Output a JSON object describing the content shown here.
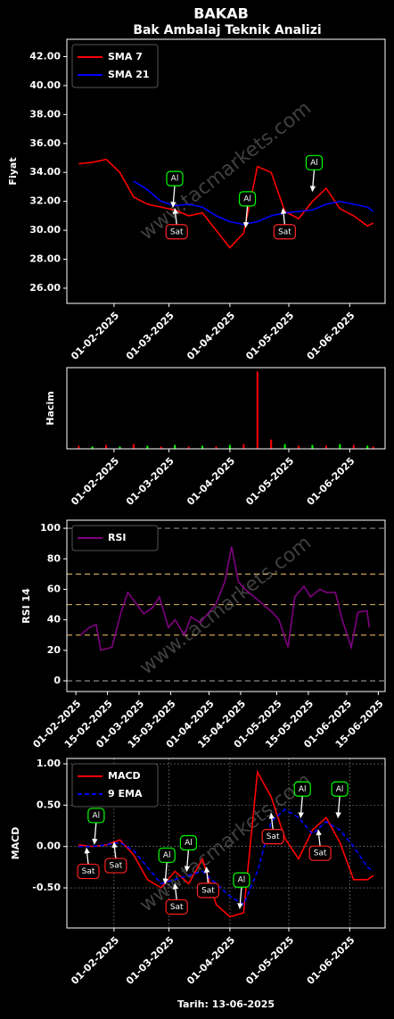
{
  "chart_data": [
    {
      "type": "line",
      "title": "BAKAB",
      "subtitle": "Bak Ambalaj Teknik Analizi",
      "ylabel": "Fiyat",
      "watermark": "www.tacmarkets.com",
      "x": [
        "2025-01-14",
        "2025-01-21",
        "2025-01-28",
        "2025-02-04",
        "2025-02-11",
        "2025-02-18",
        "2025-02-25",
        "2025-03-04",
        "2025-03-11",
        "2025-03-18",
        "2025-03-25",
        "2025-04-01",
        "2025-04-08",
        "2025-04-15",
        "2025-04-22",
        "2025-04-29",
        "2025-05-06",
        "2025-05-13",
        "2025-05-20",
        "2025-05-27",
        "2025-06-03",
        "2025-06-10",
        "2025-06-13"
      ],
      "series": [
        {
          "name": "SMA 7",
          "color": "#ff0000",
          "values": [
            34.6,
            34.7,
            34.9,
            34.0,
            32.3,
            31.8,
            31.6,
            31.4,
            31.0,
            31.2,
            30.0,
            28.8,
            29.8,
            34.4,
            34.0,
            31.3,
            30.8,
            32.0,
            32.9,
            31.5,
            31.0,
            30.3,
            30.5
          ]
        },
        {
          "name": "SMA 21",
          "color": "#0000ff",
          "values": [
            null,
            null,
            null,
            null,
            33.4,
            32.8,
            32.0,
            31.7,
            31.8,
            31.6,
            31.0,
            30.6,
            30.4,
            30.6,
            31.0,
            31.2,
            31.3,
            31.4,
            31.8,
            32.0,
            31.8,
            31.6,
            31.3
          ]
        }
      ],
      "annotations": [
        {
          "text": "Al",
          "x": "2025-03-03",
          "y": 31.6
        },
        {
          "text": "Sat",
          "x": "2025-03-04",
          "y": 31.5
        },
        {
          "text": "Al",
          "x": "2025-04-09",
          "y": 30.2
        },
        {
          "text": "Sat",
          "x": "2025-04-28",
          "y": 31.5
        },
        {
          "text": "Al",
          "x": "2025-05-13",
          "y": 32.7
        }
      ],
      "xlim": [
        "2025-01-08",
        "2025-06-19"
      ],
      "xticks": [
        {
          "value": "2025-02-01",
          "label": "01-02-2025"
        },
        {
          "value": "2025-03-01",
          "label": "01-03-2025"
        },
        {
          "value": "2025-04-01",
          "label": "01-04-2025"
        },
        {
          "value": "2025-05-01",
          "label": "01-05-2025"
        },
        {
          "value": "2025-06-01",
          "label": "01-06-2025"
        }
      ],
      "ylim": [
        24.95,
        43.2
      ],
      "yticks": [
        {
          "value": 26,
          "label": "26.00"
        },
        {
          "value": 28,
          "label": "28.00"
        },
        {
          "value": 30,
          "label": "30.00"
        },
        {
          "value": 32,
          "label": "32.00"
        },
        {
          "value": 34,
          "label": "34.00"
        },
        {
          "value": 36,
          "label": "36.00"
        },
        {
          "value": 38,
          "label": "38.00"
        },
        {
          "value": 40,
          "label": "40.00"
        },
        {
          "value": 42,
          "label": "42.00"
        }
      ],
      "legend": "upper left",
      "grid": false
    },
    {
      "type": "bar",
      "ylabel": "Hacim",
      "x": [
        "2025-01-14",
        "2025-01-21",
        "2025-01-28",
        "2025-02-04",
        "2025-02-11",
        "2025-02-18",
        "2025-02-25",
        "2025-03-04",
        "2025-03-11",
        "2025-03-18",
        "2025-03-25",
        "2025-04-01",
        "2025-04-08",
        "2025-04-15",
        "2025-04-22",
        "2025-04-29",
        "2025-05-06",
        "2025-05-13",
        "2025-05-20",
        "2025-05-27",
        "2025-06-03",
        "2025-06-10",
        "2025-06-13"
      ],
      "values": [
        4,
        3,
        5,
        3,
        6,
        4,
        3,
        5,
        3,
        4,
        3,
        5,
        6,
        100,
        12,
        6,
        4,
        5,
        4,
        6,
        5,
        4,
        3
      ],
      "colors": [
        "#ff0000",
        "#00ff00",
        "#ff0000",
        "#00ff00",
        "#ff0000",
        "#00ff00",
        "#ff0000",
        "#00ff00",
        "#ff0000",
        "#00ff00",
        "#ff0000",
        "#00ff00",
        "#ff0000",
        "#ff0000",
        "#ff0000",
        "#00ff00",
        "#ff0000",
        "#00ff00",
        "#ff0000",
        "#00ff00",
        "#ff0000",
        "#00ff00",
        "#ff0000"
      ],
      "xlim": [
        "2025-01-08",
        "2025-06-19"
      ],
      "xticks": [
        {
          "value": "2025-02-01",
          "label": "01-02-2025"
        },
        {
          "value": "2025-03-01",
          "label": "01-03-2025"
        },
        {
          "value": "2025-04-01",
          "label": "01-04-2025"
        },
        {
          "value": "2025-05-01",
          "label": "01-05-2025"
        },
        {
          "value": "2025-06-01",
          "label": "01-06-2025"
        }
      ],
      "ylim": [
        0,
        105
      ],
      "yticks": [],
      "grid": false
    },
    {
      "type": "line",
      "ylabel": "RSI 14",
      "watermark": "www.tacmarkets.com",
      "x": [
        "2025-02-03",
        "2025-02-07",
        "2025-02-10",
        "2025-02-12",
        "2025-02-17",
        "2025-02-21",
        "2025-02-24",
        "2025-02-28",
        "2025-03-03",
        "2025-03-07",
        "2025-03-10",
        "2025-03-14",
        "2025-03-17",
        "2025-03-21",
        "2025-03-24",
        "2025-03-28",
        "2025-04-01",
        "2025-04-04",
        "2025-04-08",
        "2025-04-11",
        "2025-04-14",
        "2025-04-17",
        "2025-04-21",
        "2025-04-25",
        "2025-04-29",
        "2025-05-02",
        "2025-05-06",
        "2025-05-09",
        "2025-05-13",
        "2025-05-16",
        "2025-05-20",
        "2025-05-23",
        "2025-05-27",
        "2025-05-30",
        "2025-06-03",
        "2025-06-06",
        "2025-06-10",
        "2025-06-11"
      ],
      "series": [
        {
          "name": "RSI",
          "color": "#800080",
          "values": [
            30,
            35,
            37,
            20,
            22,
            45,
            58,
            50,
            44,
            48,
            55,
            35,
            40,
            30,
            42,
            38,
            45,
            50,
            65,
            88,
            65,
            60,
            55,
            50,
            45,
            40,
            22,
            55,
            62,
            55,
            60,
            58,
            58,
            40,
            22,
            45,
            46,
            35
          ]
        }
      ],
      "hlines": [
        {
          "value": 0,
          "color": "#888888"
        },
        {
          "value": 30,
          "color": "#c8a050"
        },
        {
          "value": 50,
          "color": "#c8a050"
        },
        {
          "value": 70,
          "color": "#c8a050"
        },
        {
          "value": 100,
          "color": "#888888"
        }
      ],
      "xlim": [
        "2025-01-28",
        "2025-06-18"
      ],
      "xticks": [
        {
          "value": "2025-02-01",
          "label": "01-02-2025"
        },
        {
          "value": "2025-02-15",
          "label": "15-02-2025"
        },
        {
          "value": "2025-03-01",
          "label": "01-03-2025"
        },
        {
          "value": "2025-03-15",
          "label": "15-03-2025"
        },
        {
          "value": "2025-04-01",
          "label": "01-04-2025"
        },
        {
          "value": "2025-04-15",
          "label": "15-04-2025"
        },
        {
          "value": "2025-05-01",
          "label": "01-05-2025"
        },
        {
          "value": "2025-05-15",
          "label": "15-05-2025"
        },
        {
          "value": "2025-06-01",
          "label": "01-06-2025"
        },
        {
          "value": "2025-06-15",
          "label": "15-06-2025"
        }
      ],
      "ylim": [
        -7,
        105.3
      ],
      "yticks": [
        0,
        20,
        40,
        60,
        80,
        100
      ],
      "legend": "upper left",
      "grid": false
    },
    {
      "type": "line",
      "ylabel": "MACD",
      "xlabel": "Tarih: 13-06-2025",
      "watermark": "www.tacmarkets.com",
      "x": [
        "2025-01-14",
        "2025-01-21",
        "2025-01-28",
        "2025-02-04",
        "2025-02-11",
        "2025-02-18",
        "2025-02-25",
        "2025-03-04",
        "2025-03-11",
        "2025-03-18",
        "2025-03-25",
        "2025-04-01",
        "2025-04-08",
        "2025-04-15",
        "2025-04-22",
        "2025-04-29",
        "2025-05-06",
        "2025-05-13",
        "2025-05-20",
        "2025-05-27",
        "2025-06-03",
        "2025-06-10",
        "2025-06-13"
      ],
      "series": [
        {
          "name": "MACD",
          "color": "#ff0000",
          "values": [
            0.02,
            0.0,
            0.02,
            0.08,
            -0.1,
            -0.4,
            -0.5,
            -0.3,
            -0.45,
            -0.15,
            -0.7,
            -0.85,
            -0.8,
            0.9,
            0.6,
            0.1,
            -0.15,
            0.2,
            0.35,
            0.05,
            -0.4,
            -0.4,
            -0.35
          ]
        },
        {
          "name": "9 EMA",
          "color": "#0000ff",
          "dash": true,
          "values": [
            0.0,
            0.0,
            0.02,
            0.05,
            -0.05,
            -0.25,
            -0.45,
            -0.4,
            -0.35,
            -0.3,
            -0.45,
            -0.6,
            -0.7,
            -0.3,
            0.3,
            0.45,
            0.35,
            0.15,
            0.3,
            0.2,
            0.0,
            -0.25,
            -0.3
          ]
        }
      ],
      "annotations": [
        {
          "text": "Sat",
          "x": "2025-01-18",
          "y": -0.02
        },
        {
          "text": "Al",
          "x": "2025-01-22",
          "y": 0.03
        },
        {
          "text": "Sat",
          "x": "2025-02-01",
          "y": 0.05
        },
        {
          "text": "Al",
          "x": "2025-02-27",
          "y": -0.45
        },
        {
          "text": "Sat",
          "x": "2025-03-04",
          "y": -0.45
        },
        {
          "text": "Al",
          "x": "2025-03-10",
          "y": -0.3
        },
        {
          "text": "Sat",
          "x": "2025-03-20",
          "y": -0.25
        },
        {
          "text": "Al",
          "x": "2025-04-06",
          "y": -0.75
        },
        {
          "text": "Sat",
          "x": "2025-04-22",
          "y": 0.4
        },
        {
          "text": "Al",
          "x": "2025-05-07",
          "y": 0.35
        },
        {
          "text": "Sat",
          "x": "2025-05-16",
          "y": 0.2
        },
        {
          "text": "Al",
          "x": "2025-05-26",
          "y": 0.35
        }
      ],
      "xlim": [
        "2025-01-08",
        "2025-06-19"
      ],
      "xticks": [
        {
          "value": "2025-02-01",
          "label": "01-02-2025"
        },
        {
          "value": "2025-03-01",
          "label": "01-03-2025"
        },
        {
          "value": "2025-04-01",
          "label": "01-04-2025"
        },
        {
          "value": "2025-05-01",
          "label": "01-05-2025"
        },
        {
          "value": "2025-06-01",
          "label": "01-06-2025"
        }
      ],
      "ylim": [
        -0.985,
        1.065
      ],
      "yticks": [
        {
          "value": -0.5,
          "label": "-0.50"
        },
        {
          "value": 0,
          "label": "0.00"
        },
        {
          "value": 0.5,
          "label": "0.50"
        },
        {
          "value": 1,
          "label": "1.00"
        }
      ],
      "legend": "upper left",
      "grid": true
    }
  ]
}
